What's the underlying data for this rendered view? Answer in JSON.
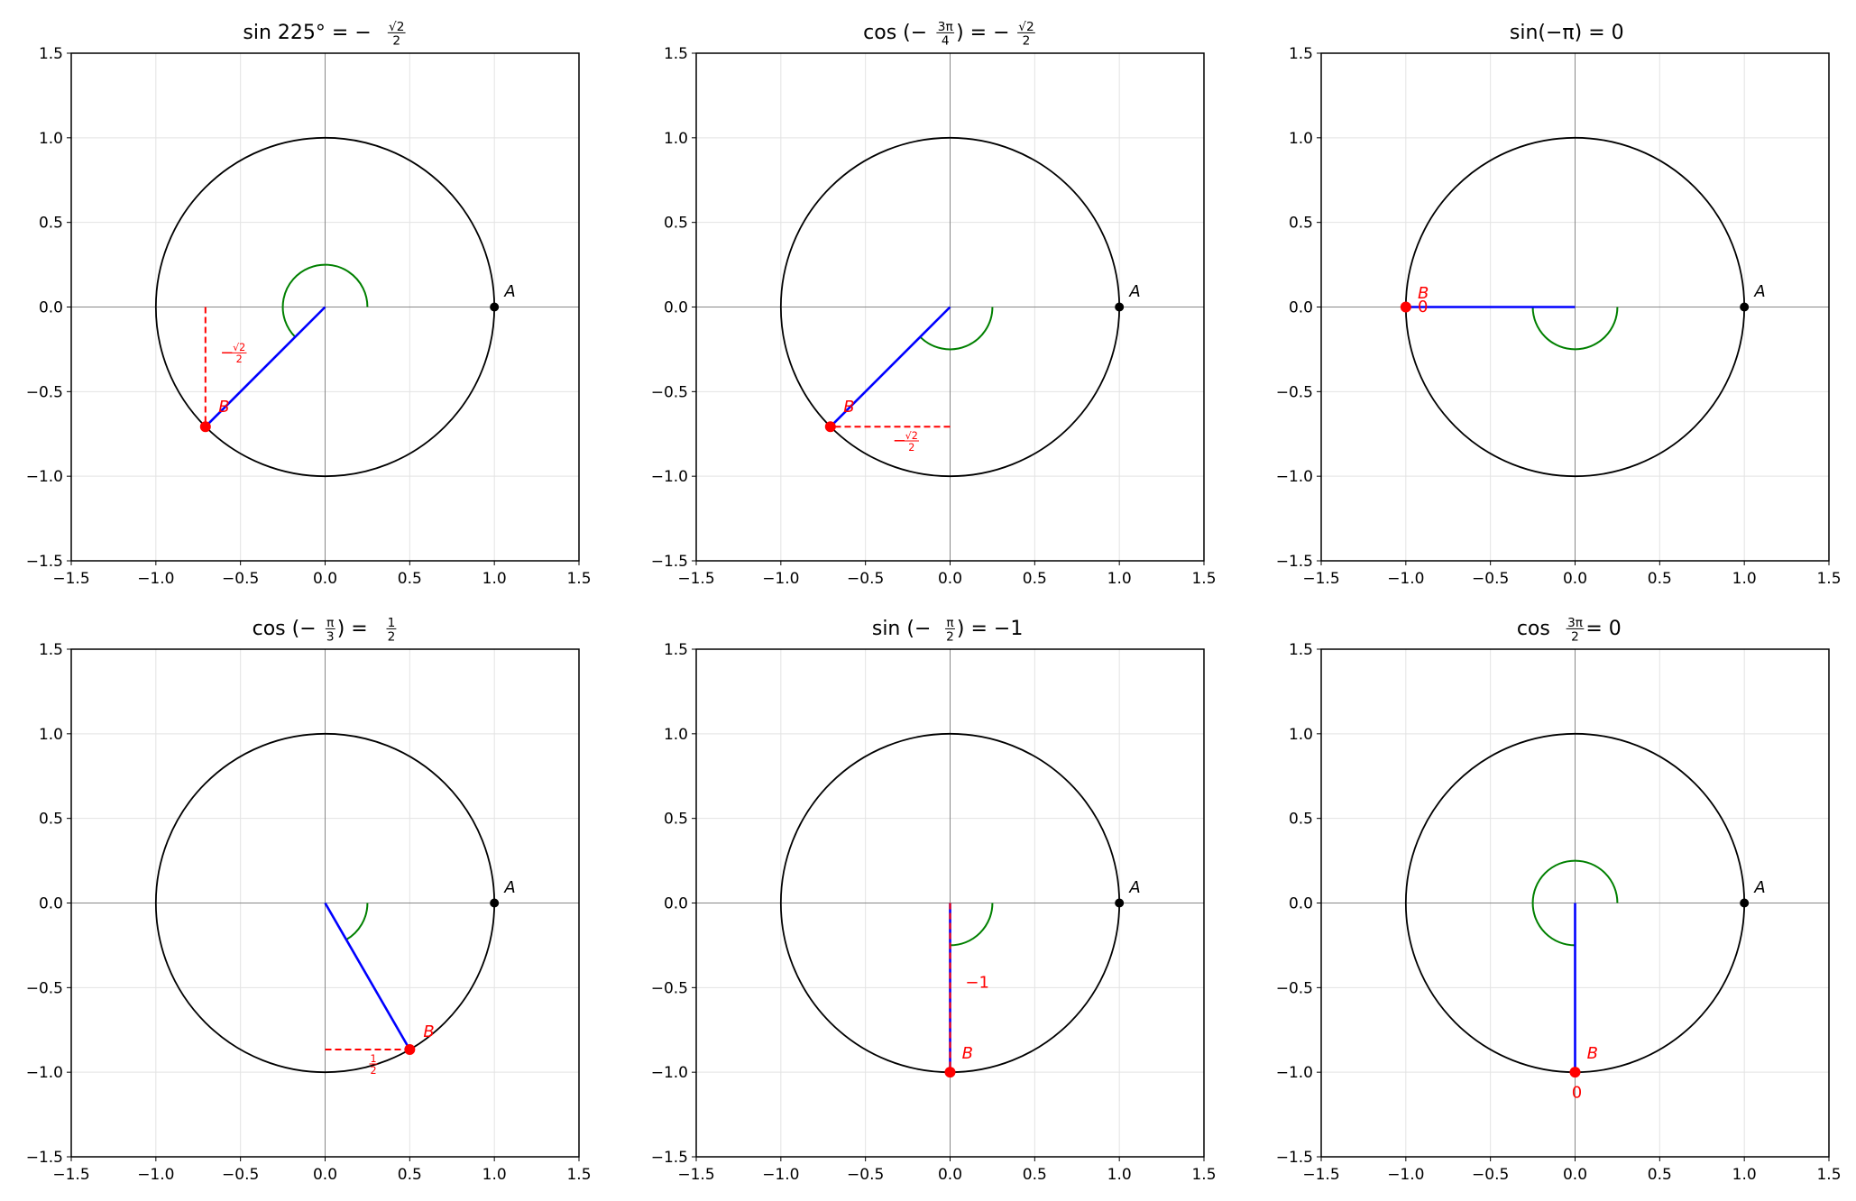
{
  "chart_data": [
    {
      "type": "line",
      "title": [
        {
          "t": "sin 225° = −"
        },
        {
          "n": "√2",
          "d": "2"
        }
      ],
      "xlim": [
        -1.5,
        1.5
      ],
      "ylim": [
        -1.5,
        1.5
      ],
      "xticks": [
        "−1.5",
        "−1.0",
        "−0.5",
        "0.0",
        "0.5",
        "1.0",
        "1.5"
      ],
      "yticks": [
        "−1.5",
        "−1.0",
        "−0.5",
        "0.0",
        "0.5",
        "1.0",
        "1.5"
      ],
      "grid": true,
      "angle_deg": 225,
      "point_A": {
        "x": 1,
        "y": 0,
        "label": "A"
      },
      "point_B": {
        "x": -0.7071,
        "y": -0.7071,
        "label": "B",
        "label_pos": [
          -0.63,
          -0.62
        ]
      },
      "projection": "sin",
      "value_label": {
        "parts": [
          {
            "t": "−"
          },
          {
            "n": "√2",
            "d": "2"
          }
        ],
        "pos": [
          -0.62,
          -0.3
        ]
      }
    },
    {
      "type": "line",
      "title": [
        {
          "t": "cos (−"
        },
        {
          "n": "3π",
          "d": "4"
        },
        {
          "t": ") = −"
        },
        {
          "n": "√2",
          "d": "2"
        }
      ],
      "xlim": [
        -1.5,
        1.5
      ],
      "ylim": [
        -1.5,
        1.5
      ],
      "xticks": [
        "−1.5",
        "−1.0",
        "−0.5",
        "0.0",
        "0.5",
        "1.0",
        "1.5"
      ],
      "yticks": [
        "−1.5",
        "−1.0",
        "−0.5",
        "0.0",
        "0.5",
        "1.0",
        "1.5"
      ],
      "grid": true,
      "angle_deg": -135,
      "point_A": {
        "x": 1,
        "y": 0,
        "label": "A"
      },
      "point_B": {
        "x": -0.7071,
        "y": -0.7071,
        "label": "B",
        "label_pos": [
          -0.63,
          -0.62
        ]
      },
      "projection": "cos",
      "value_label": {
        "parts": [
          {
            "t": "−"
          },
          {
            "n": "√2",
            "d": "2"
          }
        ],
        "pos": [
          -0.34,
          -0.82
        ]
      }
    },
    {
      "type": "line",
      "title": [
        {
          "t": "sin(−π) = 0"
        }
      ],
      "xlim": [
        -1.5,
        1.5
      ],
      "ylim": [
        -1.5,
        1.5
      ],
      "xticks": [
        "−1.5",
        "−1.0",
        "−0.5",
        "0.0",
        "0.5",
        "1.0",
        "1.5"
      ],
      "yticks": [
        "−1.5",
        "−1.0",
        "−0.5",
        "0.0",
        "0.5",
        "1.0",
        "1.5"
      ],
      "grid": true,
      "angle_deg": -180,
      "point_A": {
        "x": 1,
        "y": 0,
        "label": "A"
      },
      "point_B": {
        "x": -1,
        "y": 0,
        "label": "B",
        "label_pos": [
          -0.93,
          0.05
        ]
      },
      "projection": "sin",
      "value_label": {
        "parts": [
          {
            "t": "0"
          }
        ],
        "pos": [
          -0.93,
          -0.03
        ]
      }
    },
    {
      "type": "line",
      "title": [
        {
          "t": "cos (−"
        },
        {
          "n": "π",
          "d": "3"
        },
        {
          "t": ") = "
        },
        {
          "n": "1",
          "d": "2"
        }
      ],
      "xlim": [
        -1.5,
        1.5
      ],
      "ylim": [
        -1.5,
        1.5
      ],
      "xticks": [
        "−1.5",
        "−1.0",
        "−0.5",
        "0.0",
        "0.5",
        "1.0",
        "1.5"
      ],
      "yticks": [
        "−1.5",
        "−1.0",
        "−0.5",
        "0.0",
        "0.5",
        "1.0",
        "1.5"
      ],
      "grid": true,
      "angle_deg": -60,
      "point_A": {
        "x": 1,
        "y": 0,
        "label": "A"
      },
      "point_B": {
        "x": 0.5,
        "y": -0.866,
        "label": "B",
        "label_pos": [
          0.58,
          -0.79
        ]
      },
      "projection": "cos",
      "value_label": {
        "parts": [
          {
            "n": "1",
            "d": "2"
          }
        ],
        "pos": [
          0.25,
          -0.98
        ]
      }
    },
    {
      "type": "line",
      "title": [
        {
          "t": "sin (−"
        },
        {
          "n": "π",
          "d": "2"
        },
        {
          "t": ") = −1"
        }
      ],
      "xlim": [
        -1.5,
        1.5
      ],
      "ylim": [
        -1.5,
        1.5
      ],
      "xticks": [
        "−1.5",
        "−1.0",
        "−0.5",
        "0.0",
        "0.5",
        "1.0",
        "1.5"
      ],
      "yticks": [
        "−1.5",
        "−1.0",
        "−0.5",
        "0.0",
        "0.5",
        "1.0",
        "1.5"
      ],
      "grid": true,
      "angle_deg": -90,
      "point_A": {
        "x": 1,
        "y": 0,
        "label": "A"
      },
      "point_B": {
        "x": 0,
        "y": -1,
        "label": "B",
        "label_pos": [
          0.07,
          -0.92
        ]
      },
      "projection": "sin",
      "value_label": {
        "parts": [
          {
            "t": "−1"
          }
        ],
        "pos": [
          0.09,
          -0.5
        ]
      }
    },
    {
      "type": "line",
      "title": [
        {
          "t": "cos "
        },
        {
          "n": "3π",
          "d": "2"
        },
        {
          "t": " = 0"
        }
      ],
      "xlim": [
        -1.5,
        1.5
      ],
      "ylim": [
        -1.5,
        1.5
      ],
      "xticks": [
        "−1.5",
        "−1.0",
        "−0.5",
        "0.0",
        "0.5",
        "1.0",
        "1.5"
      ],
      "yticks": [
        "−1.5",
        "−1.0",
        "−0.5",
        "0.0",
        "0.5",
        "1.0",
        "1.5"
      ],
      "grid": true,
      "angle_deg": 270,
      "point_A": {
        "x": 1,
        "y": 0,
        "label": "A"
      },
      "point_B": {
        "x": 0,
        "y": -1,
        "label": "B",
        "label_pos": [
          0.07,
          -0.92
        ]
      },
      "projection": "cos",
      "value_label": {
        "parts": [
          {
            "t": "0"
          }
        ],
        "pos": [
          -0.02,
          -1.15
        ]
      }
    }
  ],
  "colors": {
    "circle": "#000000",
    "radius": "#0000ff",
    "projection": "#ff0000",
    "arc": "#008000",
    "point_B": "#ff0000",
    "point_A": "#000000",
    "grid": "#e3e3e3",
    "axis_zero": "#888888"
  }
}
